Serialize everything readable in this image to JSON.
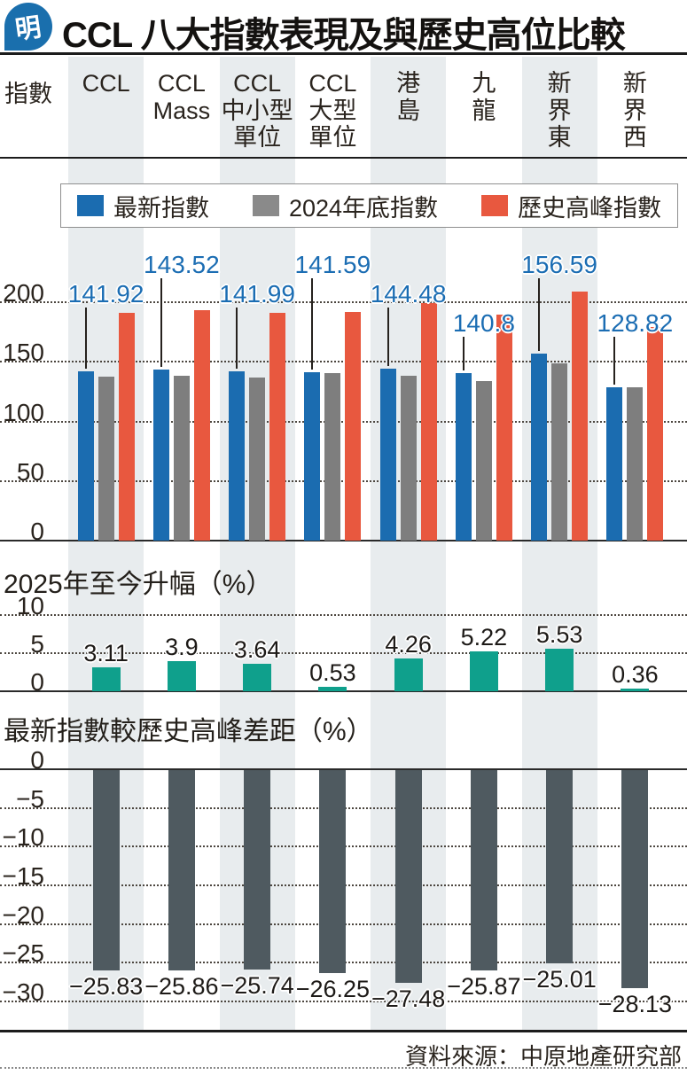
{
  "header": {
    "logo": "明",
    "title": "CCL 八大指數表現及與歷史高位比較"
  },
  "index_row_label": "指數",
  "columns": [
    {
      "label": "CCL",
      "shaded": true
    },
    {
      "label": "CCL\nMass",
      "shaded": false
    },
    {
      "label": "CCL\n中小型\n單位",
      "shaded": true
    },
    {
      "label": "CCL\n大型\n單位",
      "shaded": false
    },
    {
      "label": "港\n島",
      "shaded": true
    },
    {
      "label": "九\n龍",
      "shaded": false
    },
    {
      "label": "新\n界\n東",
      "shaded": true
    },
    {
      "label": "新\n界\n西",
      "shaded": false
    }
  ],
  "legend": [
    {
      "label": "最新指數",
      "color": "#1b6cb0"
    },
    {
      "label": "2024年底指數",
      "color": "#8a8a8a"
    },
    {
      "label": "歷史高峰指數",
      "color": "#e8583f"
    }
  ],
  "sections": {
    "gain_title": "2025年至今升幅（%）",
    "gap_title": "最新指數較歷史高峰差距（%）"
  },
  "footer": {
    "source": "資料來源：中原地產研究部"
  },
  "colors": {
    "latest": "#1b6cb0",
    "end2024": "#7e7e7e",
    "peak": "#e8583f",
    "gain": "#0fa08c",
    "gap": "#4f5a60",
    "band": "#e8ecee",
    "blue_label": "#1b6db3"
  },
  "chart_data": [
    {
      "type": "bar",
      "title": "指數",
      "categories": [
        "CCL",
        "CCL Mass",
        "CCL中小型單位",
        "CCL大型單位",
        "港島",
        "九龍",
        "新界東",
        "新界西"
      ],
      "series": [
        {
          "name": "最新指數",
          "color": "#1b6cb0",
          "values": [
            141.92,
            143.52,
            141.99,
            141.59,
            144.48,
            140.8,
            156.59,
            128.82
          ]
        },
        {
          "name": "2024年底指數",
          "color": "#7e7e7e",
          "values": [
            137.6,
            138.1,
            137.0,
            140.8,
            138.6,
            133.8,
            148.4,
            128.4
          ]
        },
        {
          "name": "歷史高峰指數",
          "color": "#e8583f",
          "values": [
            191.4,
            193.6,
            191.2,
            192.0,
            199.2,
            189.9,
            208.8,
            179.2
          ]
        }
      ],
      "value_labels": [
        "141.92",
        "143.52",
        "141.99",
        "141.59",
        "144.48",
        "140.8",
        "156.59",
        "128.82"
      ],
      "label_tiers": [
        1,
        0,
        1,
        0,
        1,
        2,
        0,
        2
      ],
      "yticks": [
        200,
        150,
        100,
        50,
        0
      ],
      "ylim": [
        0,
        215
      ],
      "grid": "dotted",
      "legend_position": "top"
    },
    {
      "type": "bar",
      "title": "2025年至今升幅（%）",
      "categories": [
        "CCL",
        "CCL Mass",
        "CCL中小型單位",
        "CCL大型單位",
        "港島",
        "九龍",
        "新界東",
        "新界西"
      ],
      "values": [
        3.11,
        3.9,
        3.64,
        0.53,
        4.26,
        5.22,
        5.53,
        0.36
      ],
      "value_labels": [
        "3.11",
        "3.9",
        "3.64",
        "0.53",
        "4.26",
        "5.22",
        "5.53",
        "0.36"
      ],
      "color": "#0fa08c",
      "yticks": [
        10,
        5,
        0
      ],
      "ylim": [
        0,
        12
      ],
      "grid": "dotted"
    },
    {
      "type": "bar",
      "title": "最新指數較歷史高峰差距（%）",
      "categories": [
        "CCL",
        "CCL Mass",
        "CCL中小型單位",
        "CCL大型單位",
        "港島",
        "九龍",
        "新界東",
        "新界西"
      ],
      "values": [
        -25.83,
        -25.86,
        -25.74,
        -26.25,
        -27.48,
        -25.87,
        -25.01,
        -28.13
      ],
      "value_labels": [
        "−25.83",
        "−25.86",
        "−25.74",
        "−26.25",
        "−27.48",
        "−25.87",
        "−25.01",
        "−28.13"
      ],
      "color": "#4f5a60",
      "yticks": [
        0,
        -5,
        -10,
        -15,
        -20,
        -25,
        -30
      ],
      "ylim": [
        -31,
        0
      ],
      "grid": "dotted"
    }
  ]
}
